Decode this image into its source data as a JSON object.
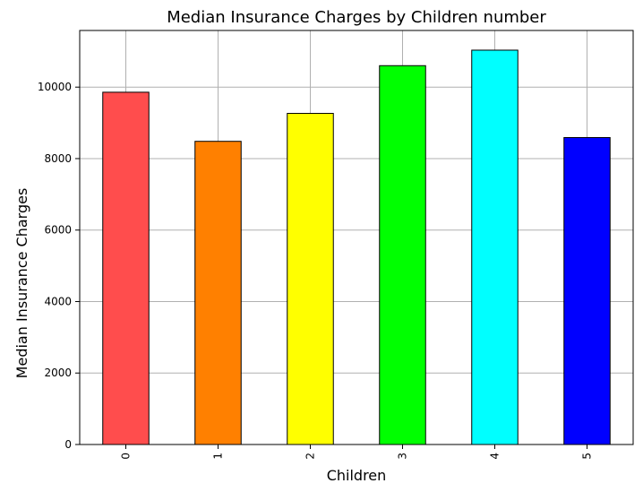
{
  "chart_data": {
    "type": "bar",
    "title": "Median Insurance Charges by Children number",
    "xlabel": "Children",
    "ylabel": "Median Insurance Charges",
    "categories": [
      "0",
      "1",
      "2",
      "3",
      "4",
      "5"
    ],
    "values": [
      9857,
      8483,
      9265,
      10600,
      11034,
      8589
    ],
    "ylim": [
      0,
      11585
    ],
    "yticks": [
      0,
      2000,
      4000,
      6000,
      8000,
      10000
    ],
    "ytick_labels": [
      "0",
      "2000",
      "4000",
      "6000",
      "8000",
      "10000"
    ],
    "grid": true,
    "bar_colors": [
      "#ff4d4d",
      "#ff8000",
      "#ffff00",
      "#00ff00",
      "#00ffff",
      "#0000ff"
    ],
    "bar_edge_color": "#000000",
    "grid_color": "#b0b0b0"
  }
}
